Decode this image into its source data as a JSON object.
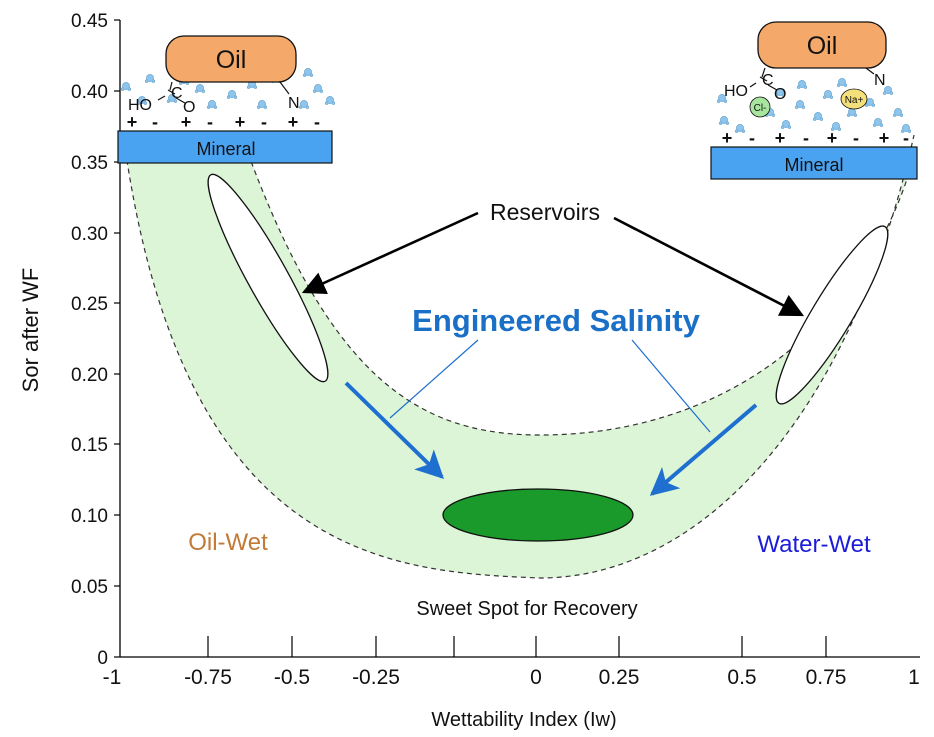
{
  "figure": {
    "y_axis_label": "Sor after WF",
    "x_axis_label": "Wettability Index (Iw)",
    "y_ticks": [
      "0",
      "0.05",
      "0.10",
      "0.15",
      "0.20",
      "0.25",
      "0.30",
      "0.35",
      "0.40",
      "0.45"
    ],
    "x_ticks": [
      "-1",
      "-0.75",
      "-0.5",
      "-0.25",
      "0",
      "0.25",
      "0.5",
      "0.75",
      "1"
    ],
    "reservoirs_label": "Reservoirs",
    "engineered_salinity_label": "Engineered Salinity",
    "oil_wet_label": "Oil-Wet",
    "water_wet_label": "Water-Wet",
    "sweet_spot_label": "Sweet Spot for Recovery",
    "left_inset": {
      "oil_label": "Oil",
      "mineral_label": "Mineral",
      "ho_label": "HO",
      "c_label": "C",
      "o_label": "O",
      "n_label": "N",
      "charges": [
        "+",
        "-",
        "+",
        "-",
        "+",
        "-",
        "+",
        "-",
        "+",
        "-"
      ]
    },
    "right_inset": {
      "oil_label": "Oil",
      "mineral_label": "Mineral",
      "ho_label": "HO",
      "c_label": "C",
      "o_label": "O",
      "n_label": "N",
      "cl_label": "Cl-",
      "na_label": "Na+",
      "charges": [
        "+",
        "-",
        "+",
        "-",
        "+",
        "-",
        "+",
        "-",
        "+",
        "-"
      ]
    },
    "colors": {
      "band_fill": "#dcf5d6",
      "sweet_spot": "#1a9a2a",
      "arrow_blue": "#1e6fd0",
      "salinity_text": "#1a6fc7",
      "oil_wet": "#c27a37",
      "water_wet": "#1c1cd8",
      "oil_fill": "#f4a96a",
      "mineral_fill": "#4aa3f0",
      "water_molecule": "#8ec5ec"
    }
  }
}
